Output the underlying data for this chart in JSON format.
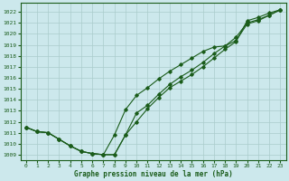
{
  "xlabel": "Graphe pression niveau de la mer (hPa)",
  "ylim": [
    1008.5,
    1022.8
  ],
  "xlim": [
    -0.5,
    23.5
  ],
  "xticks": [
    0,
    1,
    2,
    3,
    4,
    5,
    6,
    7,
    8,
    9,
    10,
    11,
    12,
    13,
    14,
    15,
    16,
    17,
    18,
    19,
    20,
    21,
    22,
    23
  ],
  "yticks": [
    1009,
    1010,
    1011,
    1012,
    1013,
    1014,
    1015,
    1016,
    1017,
    1018,
    1019,
    1020,
    1021,
    1022
  ],
  "bg_color": "#cce8ec",
  "grid_color": "#aacccc",
  "line_color": "#1a5c1a",
  "series": [
    [
      1011.5,
      1011.1,
      1011.0,
      1010.4,
      1009.8,
      1009.3,
      1009.1,
      1009.0,
      1009.0,
      1010.8,
      1012.0,
      1013.2,
      1014.2,
      1015.1,
      1015.7,
      1016.3,
      1017.0,
      1017.8,
      1018.6,
      1019.3,
      1021.2,
      1021.5,
      1021.9,
      1022.2
    ],
    [
      1011.5,
      1011.1,
      1011.0,
      1010.4,
      1009.8,
      1009.3,
      1009.1,
      1009.0,
      1009.0,
      1010.8,
      1012.8,
      1013.5,
      1014.5,
      1015.4,
      1016.1,
      1016.7,
      1017.4,
      1018.2,
      1018.9,
      1019.7,
      1021.0,
      1021.3,
      1021.7,
      1022.2
    ],
    [
      1011.5,
      1011.1,
      1011.0,
      1010.4,
      1009.8,
      1009.3,
      1009.1,
      1009.0,
      1010.8,
      1013.1,
      1014.4,
      1015.1,
      1015.9,
      1016.6,
      1017.2,
      1017.8,
      1018.4,
      1018.8,
      1018.9,
      1019.4,
      1020.9,
      1021.2,
      1021.7,
      1022.2
    ]
  ]
}
